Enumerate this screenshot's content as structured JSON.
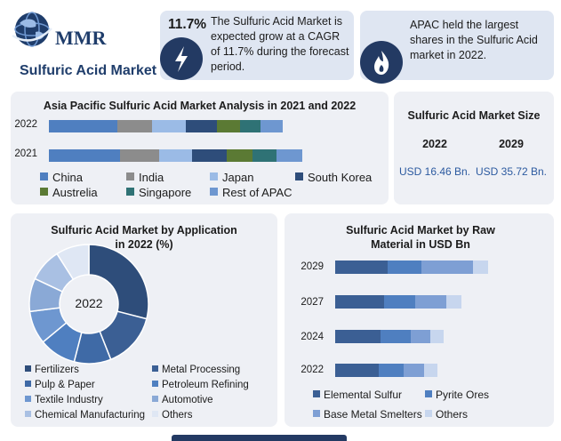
{
  "header": {
    "logo_text": "MMR",
    "title": "Sulfuric Acid Market"
  },
  "stats": {
    "cagr_value": "11.7%",
    "cagr_text": "The Sulfuric Acid Market is expected grow at a CAGR of 11.7% during the forecast period.",
    "apac_text": "APAC held the largest shares in the Sulfuric Acid market in 2022."
  },
  "market_size": {
    "title": "Sulfuric Acid Market Size",
    "years": [
      "2022",
      "2029"
    ],
    "values": [
      "USD 16.46 Bn.",
      "USD 35.72 Bn."
    ]
  },
  "colors": {
    "navy": "#233a63",
    "dark_blue": "#3b5f94",
    "mid_blue": "#4f7fc0",
    "gray": "#8c8c8c",
    "light_blue": "#9bbbe6",
    "south_korea": "#2e4d7a",
    "green": "#5b7a34",
    "teal": "#2f7275",
    "rest_blue": "#6e97d0",
    "pale": "#c7d6ee",
    "very_pale": "#dfe7f4"
  },
  "chart_data": [
    {
      "type": "bar",
      "orientation": "horizontal-stacked",
      "title": "Asia Pacific Sulfuric Acid Market Analysis in 2021 and 2022",
      "categories": [
        "2022",
        "2021"
      ],
      "series": [
        {
          "name": "China",
          "values": [
            77,
            80
          ]
        },
        {
          "name": "India",
          "values": [
            39,
            44
          ]
        },
        {
          "name": "Japan",
          "values": [
            38,
            37
          ]
        },
        {
          "name": "South Korea",
          "values": [
            35,
            39
          ]
        },
        {
          "name": "Austrelia",
          "values": [
            26,
            29
          ]
        },
        {
          "name": "Singapore",
          "values": [
            23,
            27
          ]
        },
        {
          "name": "Rest of APAC",
          "values": [
            25,
            29
          ]
        }
      ]
    },
    {
      "type": "pie",
      "subtype": "donut",
      "title": "Sulfuric Acid Market by Application in 2022 (%)",
      "center_label": "2022",
      "series": [
        {
          "name": "Fertilizers",
          "value": 29
        },
        {
          "name": "Metal Processing",
          "value": 15
        },
        {
          "name": "Pulp & Paper",
          "value": 10
        },
        {
          "name": "Petroleum Refining",
          "value": 10
        },
        {
          "name": "Textile Industry",
          "value": 9
        },
        {
          "name": "Automotive",
          "value": 9
        },
        {
          "name": "Chemical Manufacturing",
          "value": 9
        },
        {
          "name": "Others",
          "value": 9
        }
      ]
    },
    {
      "type": "bar",
      "orientation": "horizontal-stacked",
      "title": "Sulfuric Acid Market by Raw Material in USD Bn",
      "categories": [
        "2029",
        "2027",
        "2024",
        "2022"
      ],
      "series": [
        {
          "name": "Elemental Sulfur",
          "values": [
            59,
            55,
            51,
            49
          ]
        },
        {
          "name": "Pyrite Ores",
          "values": [
            38,
            35,
            34,
            28
          ]
        },
        {
          "name": "Base Metal Smelters",
          "values": [
            58,
            35,
            22,
            23
          ]
        },
        {
          "name": "Others",
          "values": [
            17,
            17,
            15,
            15
          ]
        }
      ]
    }
  ]
}
